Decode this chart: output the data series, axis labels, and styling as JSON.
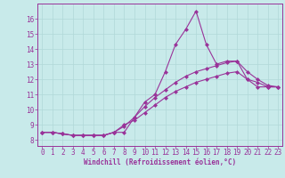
{
  "background_color": "#c8eaea",
  "grid_color": "#b0d8d8",
  "line_color": "#993399",
  "xlabel": "Windchill (Refroidissement éolien,°C)",
  "ylabel_values": [
    8,
    9,
    10,
    11,
    12,
    13,
    14,
    15,
    16
  ],
  "xlim": [
    -0.5,
    23.4
  ],
  "ylim": [
    7.6,
    17.0
  ],
  "xtick_labels": [
    "0",
    "1",
    "2",
    "3",
    "4",
    "5",
    "6",
    "7",
    "8",
    "9",
    "10",
    "11",
    "12",
    "13",
    "14",
    "15",
    "16",
    "17",
    "18",
    "19",
    "20",
    "21",
    "22",
    "23"
  ],
  "line1_x": [
    0,
    1,
    2,
    3,
    4,
    5,
    6,
    7,
    8,
    9,
    10,
    11,
    12,
    13,
    14,
    15,
    16,
    17,
    18,
    19,
    20,
    21,
    22,
    23
  ],
  "line1_y": [
    8.5,
    8.5,
    8.4,
    8.3,
    8.3,
    8.3,
    8.3,
    8.5,
    8.5,
    9.5,
    10.5,
    11.0,
    12.5,
    14.3,
    15.3,
    16.5,
    14.3,
    13.0,
    13.2,
    13.2,
    12.0,
    11.8,
    11.5,
    11.5
  ],
  "line2_x": [
    0,
    1,
    2,
    3,
    4,
    5,
    6,
    7,
    8,
    9,
    10,
    11,
    12,
    13,
    14,
    15,
    16,
    17,
    18,
    19,
    20,
    21,
    22,
    23
  ],
  "line2_y": [
    8.5,
    8.5,
    8.4,
    8.3,
    8.3,
    8.3,
    8.3,
    8.5,
    8.9,
    9.5,
    10.2,
    10.8,
    11.3,
    11.8,
    12.2,
    12.5,
    12.7,
    12.9,
    13.1,
    13.2,
    12.5,
    12.0,
    11.6,
    11.5
  ],
  "line3_x": [
    0,
    1,
    2,
    3,
    4,
    5,
    6,
    7,
    8,
    9,
    10,
    11,
    12,
    13,
    14,
    15,
    16,
    17,
    18,
    19,
    20,
    21,
    22,
    23
  ],
  "line3_y": [
    8.5,
    8.5,
    8.4,
    8.3,
    8.3,
    8.3,
    8.3,
    8.5,
    9.0,
    9.3,
    9.8,
    10.3,
    10.8,
    11.2,
    11.5,
    11.8,
    12.0,
    12.2,
    12.4,
    12.5,
    12.0,
    11.5,
    11.5,
    11.5
  ],
  "marker": "D",
  "markersize": 2.0,
  "linewidth": 0.8,
  "tick_fontsize": 5.5,
  "xlabel_fontsize": 5.5,
  "font_family": "monospace"
}
